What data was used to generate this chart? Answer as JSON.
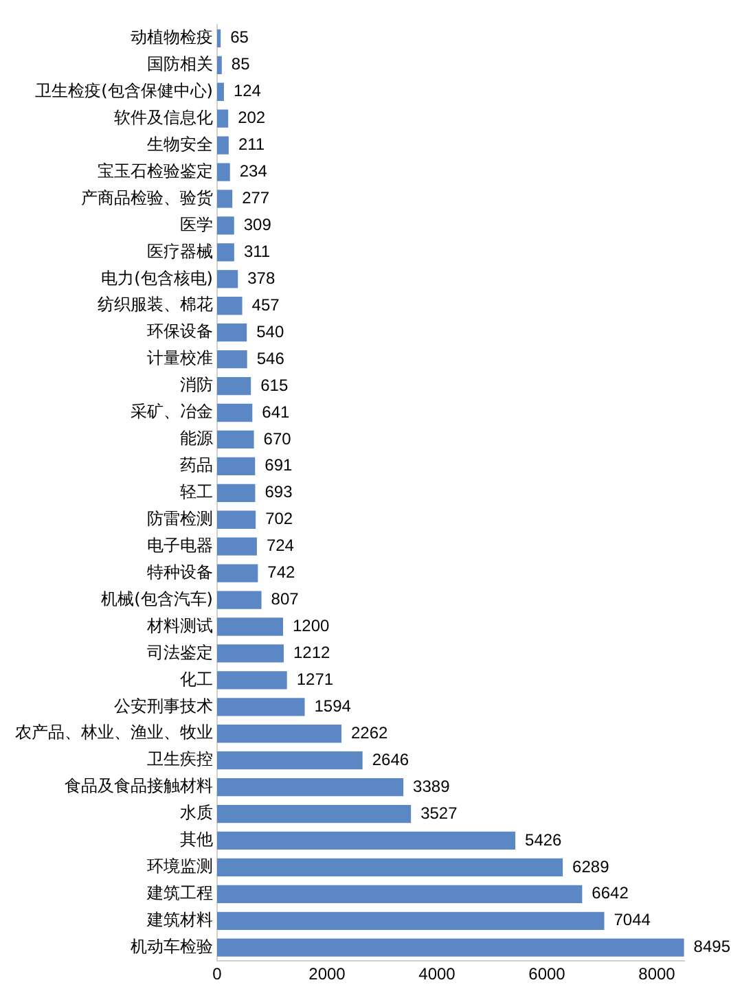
{
  "chart_data": {
    "type": "bar",
    "orientation": "horizontal",
    "categories": [
      "动植物检疫",
      "国防相关",
      "卫生检疫(包含保健中心)",
      "软件及信息化",
      "生物安全",
      "宝玉石检验鉴定",
      "产商品检验、验货",
      "医学",
      "医疗器械",
      "电力(包含核电)",
      "纺织服装、棉花",
      "环保设备",
      "计量校准",
      "消防",
      "采矿、冶金",
      "能源",
      "药品",
      "轻工",
      "防雷检测",
      "电子电器",
      "特种设备",
      "机械(包含汽车)",
      "材料测试",
      "司法鉴定",
      "化工",
      "公安刑事技术",
      "农产品、林业、渔业、牧业",
      "卫生疾控",
      "食品及食品接触材料",
      "水质",
      "其他",
      "环境监测",
      "建筑工程",
      "建筑材料",
      "机动车检验"
    ],
    "values": [
      65,
      85,
      124,
      202,
      211,
      234,
      277,
      309,
      311,
      378,
      457,
      540,
      546,
      615,
      641,
      670,
      691,
      693,
      702,
      724,
      742,
      807,
      1200,
      1212,
      1271,
      1594,
      2262,
      2646,
      3389,
      3527,
      5426,
      6289,
      6642,
      7044,
      8495
    ],
    "color": "#5b87c5",
    "xlim": [
      0,
      8500
    ],
    "xticks": [
      0,
      2000,
      4000,
      6000,
      8000
    ],
    "grid": false,
    "legend": false,
    "data_labels": true
  }
}
